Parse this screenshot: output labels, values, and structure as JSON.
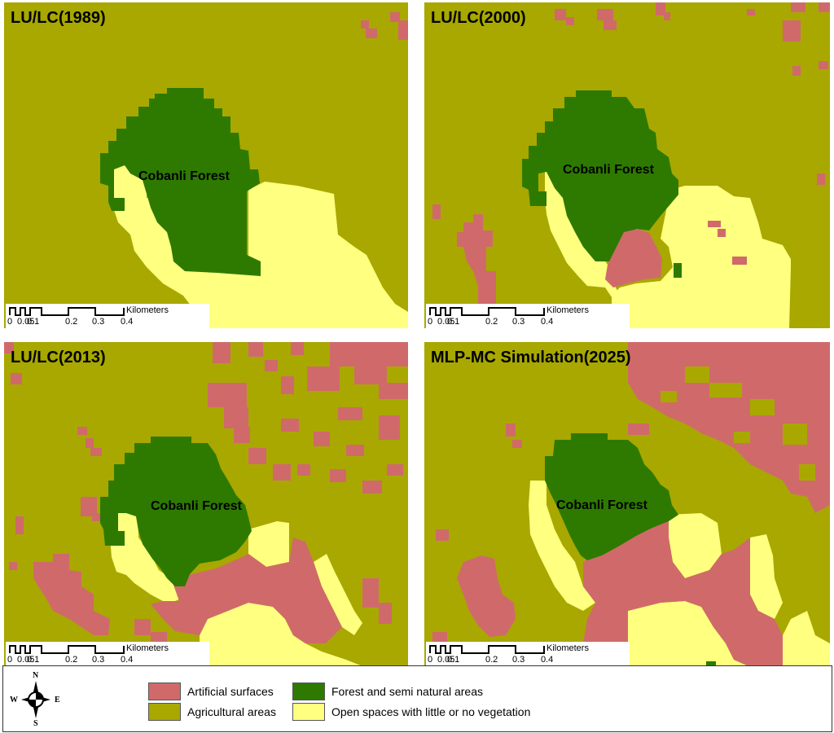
{
  "colors": {
    "agricultural": "#a8a800",
    "artificial": "#d06a6a",
    "forest": "#2e7a00",
    "open": "#ffff80"
  },
  "panels": [
    {
      "title": "LU/LC(1989)",
      "forest_label": "Cobanli Forest"
    },
    {
      "title": "LU/LC(2000)",
      "forest_label": "Cobanli Forest"
    },
    {
      "title": "LU/LC(2013)",
      "forest_label": "Cobanli Forest"
    },
    {
      "title": "MLP-MC Simulation(2025)",
      "forest_label": "Cobanli Forest"
    }
  ],
  "scalebar": {
    "unit": "Kilometers",
    "ticks": [
      "0",
      "0.05",
      "0.1",
      "0.2",
      "0.3",
      "0.4"
    ]
  },
  "legend": {
    "items": [
      {
        "label": "Artificial surfaces",
        "color": "#d06a6a"
      },
      {
        "label": "Agricultural areas",
        "color": "#a8a800"
      },
      {
        "label": "Forest and semi natural areas",
        "color": "#2e7a00"
      },
      {
        "label": "Open spaces with little or no vegetation",
        "color": "#ffff80"
      }
    ]
  },
  "compass": {
    "north": "N",
    "south": "S",
    "east": "E",
    "west": "W"
  }
}
